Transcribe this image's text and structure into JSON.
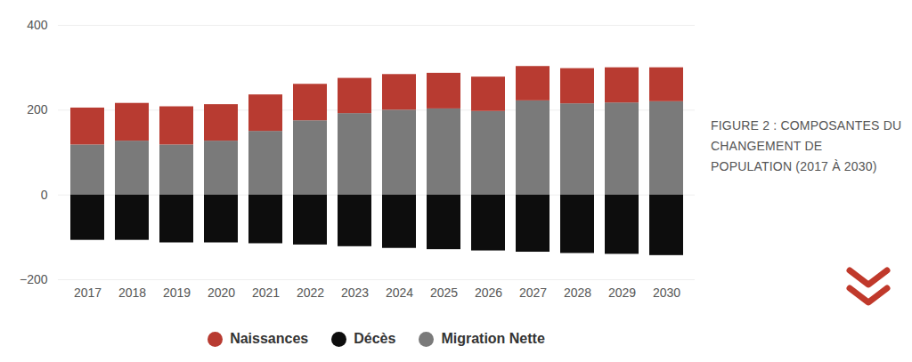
{
  "chart_data": {
    "type": "bar",
    "title": "FIGURE 2 : COMPOSANTES DU CHANGEMENT DE POPULATION (2017 À 2030)",
    "categories": [
      "2017",
      "2018",
      "2019",
      "2020",
      "2021",
      "2022",
      "2023",
      "2024",
      "2025",
      "2026",
      "2027",
      "2028",
      "2029",
      "2030"
    ],
    "series": [
      {
        "name": "Naissances",
        "color": "#b83b31",
        "values": [
          87,
          89,
          90,
          86,
          86,
          86,
          83,
          84,
          84,
          81,
          81,
          83,
          83,
          80
        ]
      },
      {
        "name": "Décès",
        "color": "#0d0d0d",
        "values": [
          -107,
          -107,
          -113,
          -113,
          -115,
          -118,
          -122,
          -126,
          -129,
          -132,
          -135,
          -138,
          -140,
          -143
        ]
      },
      {
        "name": "Migration Nette",
        "color": "#7a7a7a",
        "values": [
          118,
          127,
          118,
          127,
          150,
          175,
          192,
          200,
          203,
          197,
          222,
          215,
          217,
          220
        ]
      }
    ],
    "ylim": [
      -200,
      400
    ],
    "yticks": [
      -200,
      0,
      200,
      400
    ],
    "stacked": true,
    "grid": true,
    "legend": "bottom"
  }
}
